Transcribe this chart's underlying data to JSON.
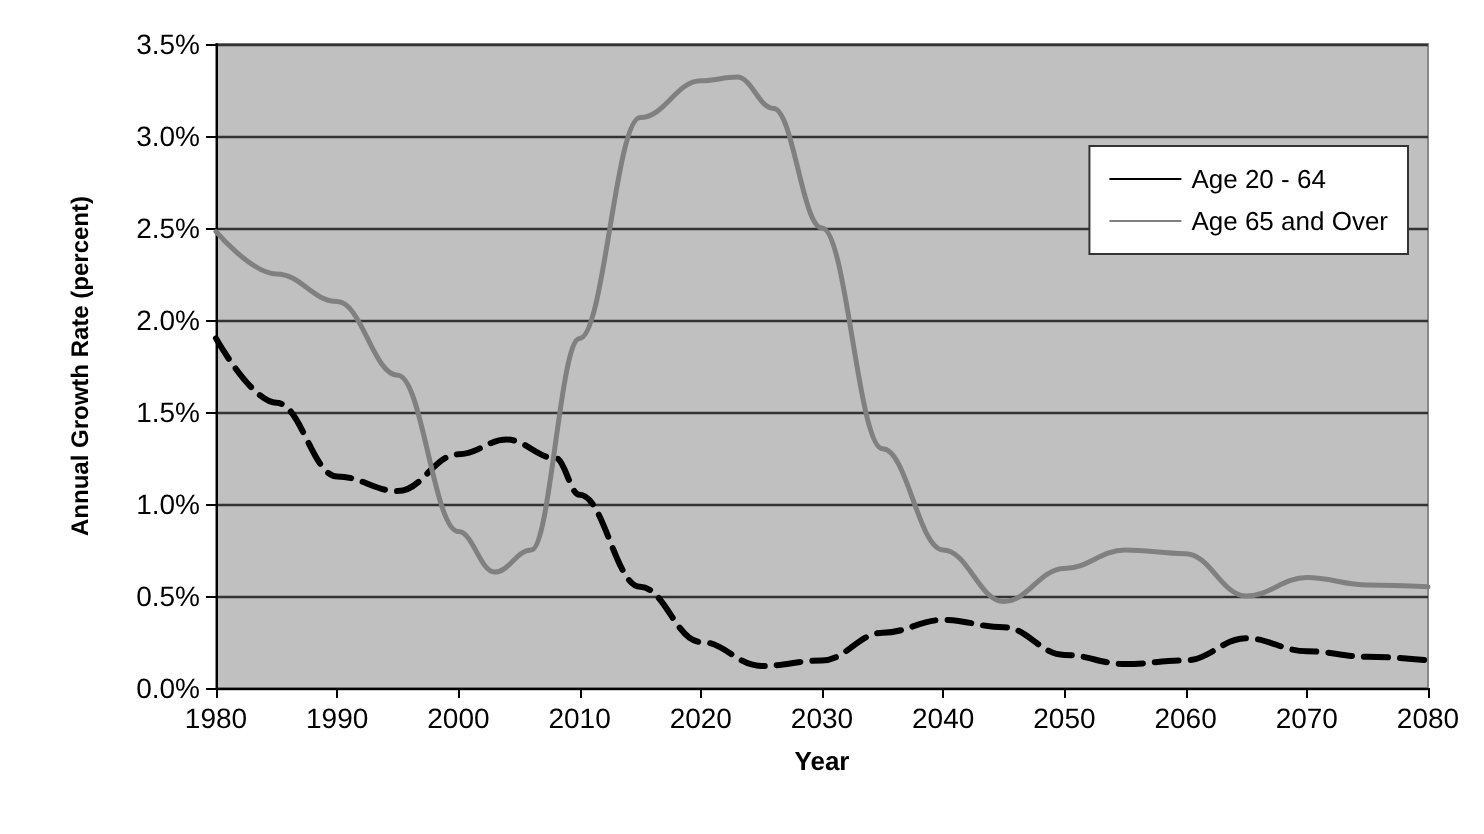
{
  "chart_data": {
    "type": "line",
    "xlabel": "Year",
    "ylabel": "Annual Growth Rate (percent)",
    "xlim": [
      1980,
      2080
    ],
    "xticks": [
      1980,
      1990,
      2000,
      2010,
      2020,
      2030,
      2040,
      2050,
      2060,
      2070,
      2080
    ],
    "ylim": [
      0,
      3.5
    ],
    "yticks": [
      {
        "value": 0,
        "label": "0.0%"
      },
      {
        "value": 0.5,
        "label": "0.5%"
      },
      {
        "value": 1,
        "label": "1.0%"
      },
      {
        "value": 1.5,
        "label": "1.5%"
      },
      {
        "value": 2,
        "label": "2.0%"
      },
      {
        "value": 2.5,
        "label": "2.5%"
      },
      {
        "value": 3,
        "label": "3.0%"
      },
      {
        "value": 3.5,
        "label": "3.5%"
      }
    ],
    "grid": "y",
    "legend": "top right",
    "marker": "none",
    "series": [
      {
        "name": "Age 20 - 64",
        "color": "#000000",
        "line_style": "dashed",
        "x": [
          1980,
          1985,
          1990,
          1995,
          2000,
          2004,
          2008,
          2010,
          2015,
          2020,
          2025,
          2030,
          2035,
          2040,
          2045,
          2050,
          2055,
          2060,
          2065,
          2070,
          2075,
          2080
        ],
        "values": [
          1.9,
          1.55,
          1.15,
          1.07,
          1.27,
          1.35,
          1.25,
          1.05,
          0.55,
          0.25,
          0.12,
          0.15,
          0.3,
          0.37,
          0.33,
          0.18,
          0.13,
          0.15,
          0.27,
          0.2,
          0.17,
          0.15
        ]
      },
      {
        "name": "Age 65 and Over",
        "color": "#808080",
        "line_style": "solid",
        "x": [
          1980,
          1985,
          1990,
          1995,
          2000,
          2003,
          2006,
          2010,
          2015,
          2020,
          2023,
          2026,
          2030,
          2035,
          2040,
          2045,
          2050,
          2055,
          2060,
          2065,
          2070,
          2075,
          2080
        ],
        "values": [
          2.48,
          2.25,
          2.1,
          1.7,
          0.85,
          0.63,
          0.75,
          1.9,
          3.1,
          3.3,
          3.32,
          3.15,
          2.5,
          1.3,
          0.75,
          0.47,
          0.65,
          0.75,
          0.73,
          0.5,
          0.6,
          0.56,
          0.55
        ]
      }
    ]
  }
}
